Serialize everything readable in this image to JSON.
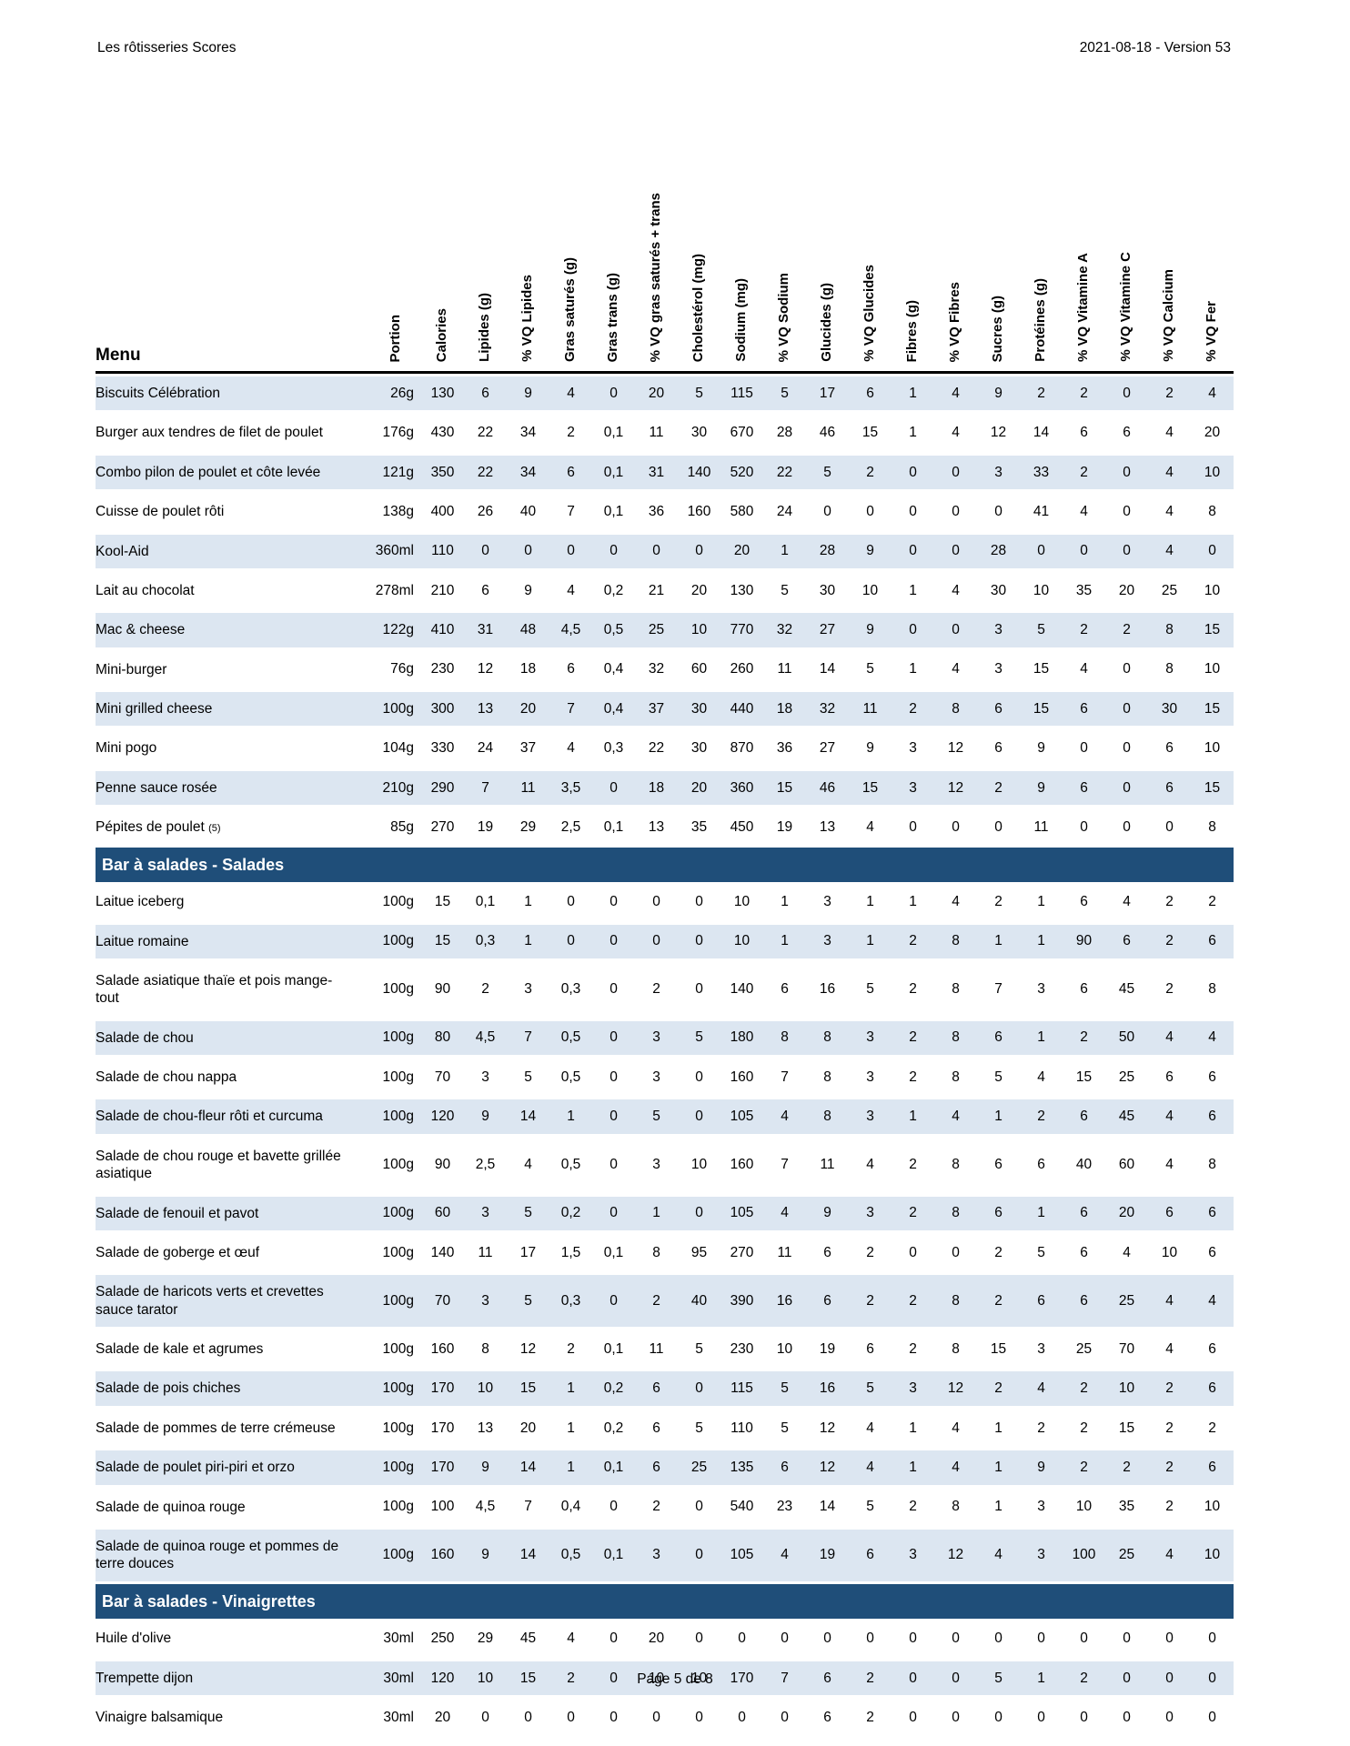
{
  "page": {
    "header_left": "Les rôtisseries Scores",
    "header_right": "2021-08-18 - Version 53",
    "footer": "Page 5 de 8"
  },
  "colors": {
    "section_header_bg": "#1F4E79",
    "row_alternate_bg": "#DCE6F1",
    "header_rule": "#000000"
  },
  "table": {
    "menu_header": "Menu",
    "columns": [
      "Portion",
      "Calories",
      "Lipides (g)",
      "% VQ Lipides",
      "Gras saturés (g)",
      "Gras trans (g)",
      "% VQ gras saturés + trans",
      "Cholestérol (mg)",
      "Sodium (mg)",
      "% VQ Sodium",
      "Glucides (g)",
      "% VQ Glucides",
      "Fibres (g)",
      "% VQ Fibres",
      "Sucres (g)",
      "Protéines (g)",
      "% VQ Vitamine A",
      "% VQ Vitamine C",
      "% VQ Calcium",
      "% VQ Fer"
    ],
    "sections": [
      {
        "title": null,
        "rows": [
          {
            "name": "Biscuits Célébration",
            "values": [
              "26g",
              "130",
              "6",
              "9",
              "4",
              "0",
              "20",
              "5",
              "115",
              "5",
              "17",
              "6",
              "1",
              "4",
              "9",
              "2",
              "2",
              "0",
              "2",
              "4"
            ]
          },
          {
            "name": "Burger aux tendres de filet de poulet",
            "values": [
              "176g",
              "430",
              "22",
              "34",
              "2",
              "0,1",
              "11",
              "30",
              "670",
              "28",
              "46",
              "15",
              "1",
              "4",
              "12",
              "14",
              "6",
              "6",
              "4",
              "20"
            ]
          },
          {
            "name": "Combo pilon de poulet et côte levée",
            "values": [
              "121g",
              "350",
              "22",
              "34",
              "6",
              "0,1",
              "31",
              "140",
              "520",
              "22",
              "5",
              "2",
              "0",
              "0",
              "3",
              "33",
              "2",
              "0",
              "4",
              "10"
            ]
          },
          {
            "name": "Cuisse de poulet rôti",
            "values": [
              "138g",
              "400",
              "26",
              "40",
              "7",
              "0,1",
              "36",
              "160",
              "580",
              "24",
              "0",
              "0",
              "0",
              "0",
              "0",
              "41",
              "4",
              "0",
              "4",
              "8"
            ]
          },
          {
            "name": "Kool-Aid",
            "values": [
              "360ml",
              "110",
              "0",
              "0",
              "0",
              "0",
              "0",
              "0",
              "20",
              "1",
              "28",
              "9",
              "0",
              "0",
              "28",
              "0",
              "0",
              "0",
              "4",
              "0"
            ]
          },
          {
            "name": "Lait au chocolat",
            "values": [
              "278ml",
              "210",
              "6",
              "9",
              "4",
              "0,2",
              "21",
              "20",
              "130",
              "5",
              "30",
              "10",
              "1",
              "4",
              "30",
              "10",
              "35",
              "20",
              "25",
              "10"
            ]
          },
          {
            "name": "Mac & cheese",
            "values": [
              "122g",
              "410",
              "31",
              "48",
              "4,5",
              "0,5",
              "25",
              "10",
              "770",
              "32",
              "27",
              "9",
              "0",
              "0",
              "3",
              "5",
              "2",
              "2",
              "8",
              "15"
            ]
          },
          {
            "name": "Mini-burger",
            "values": [
              "76g",
              "230",
              "12",
              "18",
              "6",
              "0,4",
              "32",
              "60",
              "260",
              "11",
              "14",
              "5",
              "1",
              "4",
              "3",
              "15",
              "4",
              "0",
              "8",
              "10"
            ]
          },
          {
            "name": "Mini grilled cheese",
            "values": [
              "100g",
              "300",
              "13",
              "20",
              "7",
              "0,4",
              "37",
              "30",
              "440",
              "18",
              "32",
              "11",
              "2",
              "8",
              "6",
              "15",
              "6",
              "0",
              "30",
              "15"
            ]
          },
          {
            "name": "Mini pogo",
            "values": [
              "104g",
              "330",
              "24",
              "37",
              "4",
              "0,3",
              "22",
              "30",
              "870",
              "36",
              "27",
              "9",
              "3",
              "12",
              "6",
              "9",
              "0",
              "0",
              "6",
              "10"
            ]
          },
          {
            "name": "Penne sauce rosée",
            "values": [
              "210g",
              "290",
              "7",
              "11",
              "3,5",
              "0",
              "18",
              "20",
              "360",
              "15",
              "46",
              "15",
              "3",
              "12",
              "2",
              "9",
              "6",
              "0",
              "6",
              "15"
            ]
          },
          {
            "name": "Pépites de poulet",
            "name_suffix": "(5)",
            "values": [
              "85g",
              "270",
              "19",
              "29",
              "2,5",
              "0,1",
              "13",
              "35",
              "450",
              "19",
              "13",
              "4",
              "0",
              "0",
              "0",
              "11",
              "0",
              "0",
              "0",
              "8"
            ]
          }
        ]
      },
      {
        "title": "Bar à salades - Salades",
        "rows": [
          {
            "name": "Laitue iceberg",
            "values": [
              "100g",
              "15",
              "0,1",
              "1",
              "0",
              "0",
              "0",
              "0",
              "10",
              "1",
              "3",
              "1",
              "1",
              "4",
              "2",
              "1",
              "6",
              "4",
              "2",
              "2"
            ]
          },
          {
            "name": "Laitue romaine",
            "values": [
              "100g",
              "15",
              "0,3",
              "1",
              "0",
              "0",
              "0",
              "0",
              "10",
              "1",
              "3",
              "1",
              "2",
              "8",
              "1",
              "1",
              "90",
              "6",
              "2",
              "6"
            ]
          },
          {
            "name": "Salade asiatique thaïe et pois mange-tout",
            "values": [
              "100g",
              "90",
              "2",
              "3",
              "0,3",
              "0",
              "2",
              "0",
              "140",
              "6",
              "16",
              "5",
              "2",
              "8",
              "7",
              "3",
              "6",
              "45",
              "2",
              "8"
            ]
          },
          {
            "name": "Salade de chou",
            "values": [
              "100g",
              "80",
              "4,5",
              "7",
              "0,5",
              "0",
              "3",
              "5",
              "180",
              "8",
              "8",
              "3",
              "2",
              "8",
              "6",
              "1",
              "2",
              "50",
              "4",
              "4"
            ]
          },
          {
            "name": "Salade de chou nappa",
            "values": [
              "100g",
              "70",
              "3",
              "5",
              "0,5",
              "0",
              "3",
              "0",
              "160",
              "7",
              "8",
              "3",
              "2",
              "8",
              "5",
              "4",
              "15",
              "25",
              "6",
              "6"
            ]
          },
          {
            "name": "Salade de chou-fleur rôti et curcuma",
            "values": [
              "100g",
              "120",
              "9",
              "14",
              "1",
              "0",
              "5",
              "0",
              "105",
              "4",
              "8",
              "3",
              "1",
              "4",
              "1",
              "2",
              "6",
              "45",
              "4",
              "6"
            ]
          },
          {
            "name": "Salade de chou rouge et bavette grillée asiatique",
            "values": [
              "100g",
              "90",
              "2,5",
              "4",
              "0,5",
              "0",
              "3",
              "10",
              "160",
              "7",
              "11",
              "4",
              "2",
              "8",
              "6",
              "6",
              "40",
              "60",
              "4",
              "8"
            ]
          },
          {
            "name": "Salade de fenouil et pavot",
            "values": [
              "100g",
              "60",
              "3",
              "5",
              "0,2",
              "0",
              "1",
              "0",
              "105",
              "4",
              "9",
              "3",
              "2",
              "8",
              "6",
              "1",
              "6",
              "20",
              "6",
              "6"
            ]
          },
          {
            "name": "Salade de goberge et œuf",
            "values": [
              "100g",
              "140",
              "11",
              "17",
              "1,5",
              "0,1",
              "8",
              "95",
              "270",
              "11",
              "6",
              "2",
              "0",
              "0",
              "2",
              "5",
              "6",
              "4",
              "10",
              "6"
            ]
          },
          {
            "name": "Salade de haricots verts et crevettes sauce tarator",
            "values": [
              "100g",
              "70",
              "3",
              "5",
              "0,3",
              "0",
              "2",
              "40",
              "390",
              "16",
              "6",
              "2",
              "2",
              "8",
              "2",
              "6",
              "6",
              "25",
              "4",
              "4"
            ]
          },
          {
            "name": "Salade de kale et agrumes",
            "values": [
              "100g",
              "160",
              "8",
              "12",
              "2",
              "0,1",
              "11",
              "5",
              "230",
              "10",
              "19",
              "6",
              "2",
              "8",
              "15",
              "3",
              "25",
              "70",
              "4",
              "6"
            ]
          },
          {
            "name": "Salade de pois chiches",
            "values": [
              "100g",
              "170",
              "10",
              "15",
              "1",
              "0,2",
              "6",
              "0",
              "115",
              "5",
              "16",
              "5",
              "3",
              "12",
              "2",
              "4",
              "2",
              "10",
              "2",
              "6"
            ]
          },
          {
            "name": "Salade de pommes de terre crémeuse",
            "values": [
              "100g",
              "170",
              "13",
              "20",
              "1",
              "0,2",
              "6",
              "5",
              "110",
              "5",
              "12",
              "4",
              "1",
              "4",
              "1",
              "2",
              "2",
              "15",
              "2",
              "2"
            ]
          },
          {
            "name": "Salade de poulet piri-piri et orzo",
            "values": [
              "100g",
              "170",
              "9",
              "14",
              "1",
              "0,1",
              "6",
              "25",
              "135",
              "6",
              "12",
              "4",
              "1",
              "4",
              "1",
              "9",
              "2",
              "2",
              "2",
              "6"
            ]
          },
          {
            "name": "Salade de quinoa rouge",
            "values": [
              "100g",
              "100",
              "4,5",
              "7",
              "0,4",
              "0",
              "2",
              "0",
              "540",
              "23",
              "14",
              "5",
              "2",
              "8",
              "1",
              "3",
              "10",
              "35",
              "2",
              "10"
            ]
          },
          {
            "name": "Salade de quinoa rouge et pommes de terre douces",
            "values": [
              "100g",
              "160",
              "9",
              "14",
              "0,5",
              "0,1",
              "3",
              "0",
              "105",
              "4",
              "19",
              "6",
              "3",
              "12",
              "4",
              "3",
              "100",
              "25",
              "4",
              "10"
            ]
          }
        ]
      },
      {
        "title": "Bar à salades - Vinaigrettes",
        "rows": [
          {
            "name": "Huile d'olive",
            "values": [
              "30ml",
              "250",
              "29",
              "45",
              "4",
              "0",
              "20",
              "0",
              "0",
              "0",
              "0",
              "0",
              "0",
              "0",
              "0",
              "0",
              "0",
              "0",
              "0",
              "0"
            ]
          },
          {
            "name": "Trempette dijon",
            "values": [
              "30ml",
              "120",
              "10",
              "15",
              "2",
              "0",
              "10",
              "10",
              "170",
              "7",
              "6",
              "2",
              "0",
              "0",
              "5",
              "1",
              "2",
              "0",
              "0",
              "0"
            ]
          },
          {
            "name": "Vinaigre balsamique",
            "values": [
              "30ml",
              "20",
              "0",
              "0",
              "0",
              "0",
              "0",
              "0",
              "0",
              "0",
              "6",
              "2",
              "0",
              "0",
              "0",
              "0",
              "0",
              "0",
              "0",
              "0"
            ]
          }
        ]
      }
    ]
  }
}
